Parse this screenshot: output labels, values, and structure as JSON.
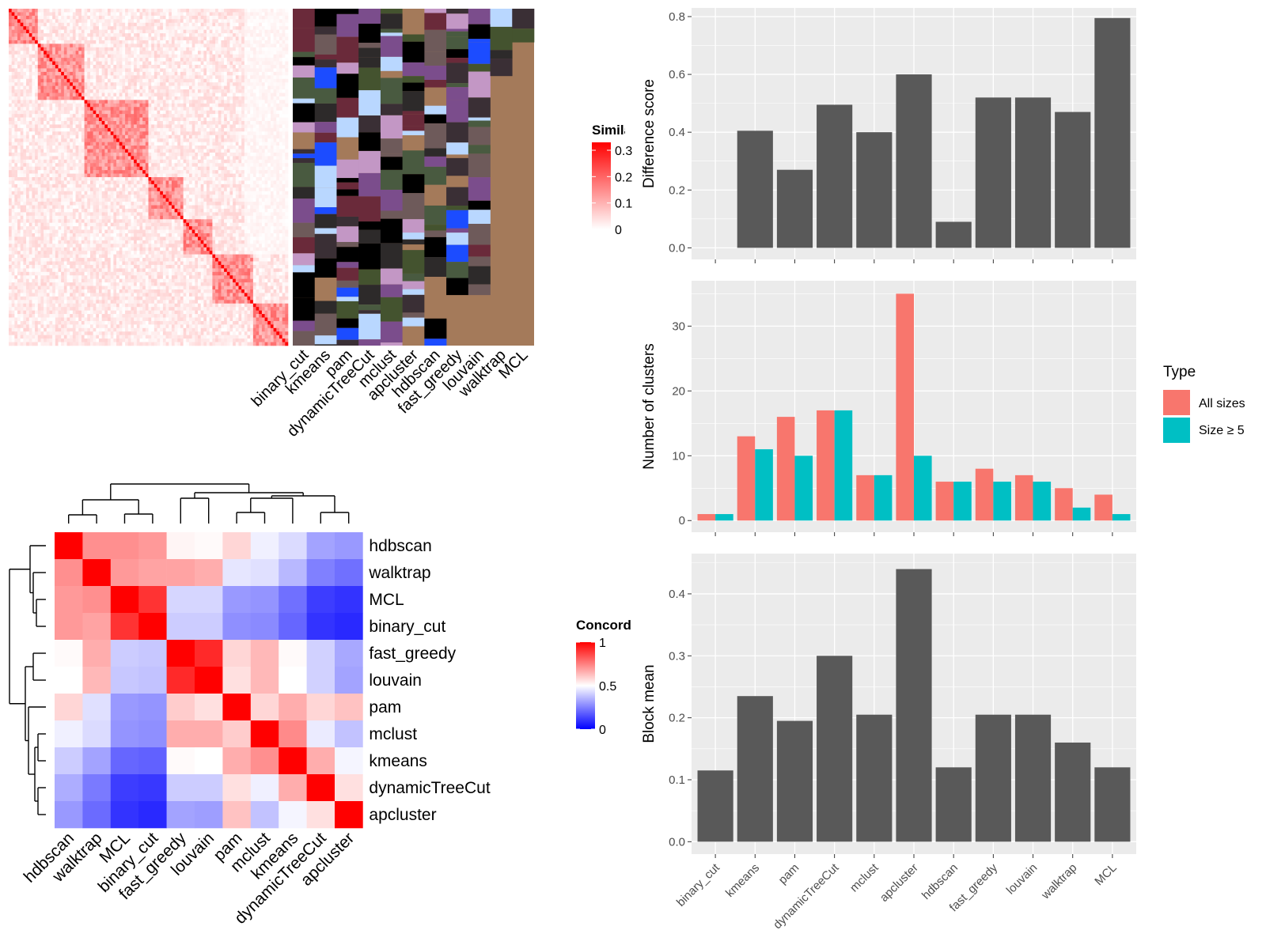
{
  "chart_data": [
    {
      "type": "heatmap",
      "legend_title": "Simila",
      "legend_ticks": [
        "0",
        "0.1",
        "0.2",
        "0.3"
      ],
      "legend_tick_values": [
        0,
        0.1,
        0.2,
        0.3
      ],
      "colors": {
        "low": "#ffffff",
        "high": "#ff0000"
      },
      "annotation_columns": [
        "binary_cut",
        "kmeans",
        "pam",
        "dynamicTreeCut",
        "mclust",
        "apcluster",
        "hdbscan",
        "fast_greedy",
        "louvain",
        "walktrap",
        "MCL"
      ]
    },
    {
      "type": "heatmap",
      "legend_title": "Concord",
      "legend_ticks": [
        "0",
        "0.5",
        "1"
      ],
      "legend_tick_values": [
        0,
        0.5,
        1
      ],
      "colors": {
        "low": "#0000ff",
        "mid": "#ffffff",
        "high": "#ff0000"
      },
      "rows": [
        "hdbscan",
        "walktrap",
        "MCL",
        "binary_cut",
        "fast_greedy",
        "louvain",
        "pam",
        "mclust",
        "kmeans",
        "dynamicTreeCut",
        "apcluster"
      ],
      "columns": [
        "hdbscan",
        "walktrap",
        "MCL",
        "binary_cut",
        "fast_greedy",
        "louvain",
        "pam",
        "mclust",
        "kmeans",
        "dynamicTreeCut",
        "apcluster"
      ],
      "values": [
        [
          1.0,
          0.72,
          0.72,
          0.7,
          0.52,
          0.51,
          0.58,
          0.47,
          0.43,
          0.32,
          0.3
        ],
        [
          0.72,
          1.0,
          0.7,
          0.68,
          0.68,
          0.66,
          0.45,
          0.44,
          0.36,
          0.25,
          0.22
        ],
        [
          0.7,
          0.72,
          1.0,
          0.9,
          0.42,
          0.42,
          0.3,
          0.29,
          0.22,
          0.12,
          0.1
        ],
        [
          0.7,
          0.68,
          0.9,
          1.0,
          0.4,
          0.4,
          0.28,
          0.27,
          0.2,
          0.1,
          0.08
        ],
        [
          0.51,
          0.66,
          0.4,
          0.39,
          1.0,
          0.92,
          0.58,
          0.64,
          0.51,
          0.41,
          0.33
        ],
        [
          0.5,
          0.64,
          0.39,
          0.38,
          0.92,
          1.0,
          0.56,
          0.64,
          0.5,
          0.41,
          0.32
        ],
        [
          0.58,
          0.44,
          0.3,
          0.29,
          0.6,
          0.56,
          1.0,
          0.58,
          0.66,
          0.58,
          0.62
        ],
        [
          0.47,
          0.43,
          0.29,
          0.28,
          0.66,
          0.66,
          0.6,
          1.0,
          0.73,
          0.46,
          0.38
        ],
        [
          0.4,
          0.32,
          0.2,
          0.19,
          0.51,
          0.5,
          0.66,
          0.72,
          1.0,
          0.66,
          0.48
        ],
        [
          0.34,
          0.24,
          0.12,
          0.11,
          0.4,
          0.4,
          0.56,
          0.47,
          0.66,
          1.0,
          0.56
        ],
        [
          0.3,
          0.21,
          0.1,
          0.08,
          0.32,
          0.31,
          0.62,
          0.38,
          0.48,
          0.56,
          1.0
        ]
      ]
    },
    {
      "type": "bar",
      "ylabel": "Difference score",
      "categories": [
        "binary_cut",
        "kmeans",
        "pam",
        "dynamicTreeCut",
        "mclust",
        "apcluster",
        "hdbscan",
        "fast_greedy",
        "louvain",
        "walktrap",
        "MCL"
      ],
      "values": [
        0,
        0.405,
        0.27,
        0.495,
        0.4,
        0.6,
        0.09,
        0.52,
        0.52,
        0.47,
        0.795
      ],
      "ylim": [
        -0.04,
        0.83
      ],
      "yticks": [
        0.0,
        0.2,
        0.4,
        0.6,
        0.8
      ],
      "ytick_labels": [
        "0.0",
        "0.2",
        "0.4",
        "0.6",
        "0.8"
      ],
      "grid": true,
      "bar_color": "#595959"
    },
    {
      "type": "bar",
      "ylabel": "Number of clusters",
      "categories": [
        "binary_cut",
        "kmeans",
        "pam",
        "dynamicTreeCut",
        "mclust",
        "apcluster",
        "hdbscan",
        "fast_greedy",
        "louvain",
        "walktrap",
        "MCL"
      ],
      "series": [
        {
          "name": "All sizes",
          "values": [
            1,
            13,
            16,
            17,
            7,
            35,
            6,
            8,
            7,
            5,
            4
          ],
          "color": "#f8766d"
        },
        {
          "name": "Size ≥ 5",
          "values": [
            1,
            11,
            10,
            17,
            7,
            10,
            6,
            6,
            6,
            2,
            1
          ],
          "color": "#00bfc4"
        }
      ],
      "ylim": [
        -1.8,
        37
      ],
      "yticks": [
        0,
        10,
        20,
        30
      ],
      "ytick_labels": [
        "0",
        "10",
        "20",
        "30"
      ],
      "grid": true,
      "legend": {
        "title": "Type",
        "position": "right"
      }
    },
    {
      "type": "bar",
      "ylabel": "Block mean",
      "categories": [
        "binary_cut",
        "kmeans",
        "pam",
        "dynamicTreeCut",
        "mclust",
        "apcluster",
        "hdbscan",
        "fast_greedy",
        "louvain",
        "walktrap",
        "MCL"
      ],
      "values": [
        0.115,
        0.235,
        0.195,
        0.3,
        0.205,
        0.44,
        0.12,
        0.205,
        0.205,
        0.16,
        0.12
      ],
      "ylim": [
        -0.02,
        0.465
      ],
      "yticks": [
        0.0,
        0.1,
        0.2,
        0.3,
        0.4
      ],
      "ytick_labels": [
        "0.0",
        "0.1",
        "0.2",
        "0.3",
        "0.4"
      ],
      "grid": true,
      "bar_color": "#595959"
    }
  ]
}
